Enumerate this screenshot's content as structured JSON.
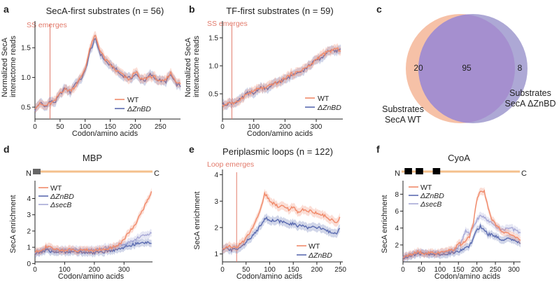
{
  "colors": {
    "wt": "#f08a6a",
    "znbd": "#5b6bb0",
    "secb": "#a7a8d6",
    "vline": "#e27a6b",
    "venn_wt": "#f6c1a7",
    "venn_secA": "#a9a3d3",
    "venn_overlap": "#a58fcf",
    "orf": "#f4c08c",
    "ss": "#666666",
    "tm": "#000000"
  },
  "chart_data": [
    {
      "panel": "a",
      "type": "line",
      "title": "SecA-first substrates (n = 56)",
      "xlabel": "Codon/amino acids",
      "ylabel": "Normalized SecA interactome reads",
      "xlim": [
        0,
        290
      ],
      "ylim": [
        0.3,
        1.95
      ],
      "xticks": [
        0,
        50,
        100,
        150,
        200,
        250
      ],
      "yticks": [
        0.5,
        1.0,
        1.5
      ],
      "ytick_labels": [
        "0.5",
        "1.0",
        "1.5"
      ],
      "vline": {
        "x": 30,
        "label": "SS emerges"
      },
      "legend": [
        "WT",
        "ΔZnBD"
      ],
      "series": [
        {
          "name": "WT",
          "x": [
            0,
            10,
            20,
            30,
            40,
            50,
            60,
            70,
            80,
            90,
            100,
            110,
            120,
            130,
            140,
            150,
            160,
            170,
            180,
            190,
            200,
            210,
            220,
            230,
            240,
            250,
            260,
            270,
            280,
            290
          ],
          "values": [
            0.5,
            0.55,
            0.52,
            0.56,
            0.6,
            0.75,
            0.8,
            0.78,
            0.85,
            0.98,
            1.15,
            1.5,
            1.72,
            1.45,
            1.3,
            1.22,
            1.12,
            1.08,
            1.0,
            0.96,
            1.12,
            0.96,
            0.98,
            1.02,
            1.0,
            0.92,
            0.95,
            1.08,
            0.95,
            0.88
          ]
        },
        {
          "name": "ΔZnBD",
          "x": [
            0,
            10,
            20,
            30,
            40,
            50,
            60,
            70,
            80,
            90,
            100,
            110,
            120,
            130,
            140,
            150,
            160,
            170,
            180,
            190,
            200,
            210,
            220,
            230,
            240,
            250,
            260,
            270,
            280,
            290
          ],
          "values": [
            0.45,
            0.58,
            0.5,
            0.6,
            0.58,
            0.72,
            0.82,
            0.75,
            0.9,
            0.95,
            1.1,
            1.45,
            1.65,
            1.4,
            1.28,
            1.2,
            1.15,
            1.05,
            1.02,
            0.98,
            1.05,
            0.98,
            0.95,
            1.05,
            0.98,
            0.95,
            0.92,
            1.05,
            0.9,
            0.85
          ]
        }
      ]
    },
    {
      "panel": "b",
      "type": "line",
      "title": "TF-first substrates (n = 59)",
      "xlabel": "Codon/amino acids",
      "ylabel": "Normalized SecA interactome reads",
      "xlim": [
        0,
        385
      ],
      "ylim": [
        0.05,
        1.8
      ],
      "xticks": [
        0,
        100,
        200,
        300
      ],
      "yticks": [
        0.5,
        1.0,
        1.5
      ],
      "ytick_labels": [
        "0.5",
        "1.0",
        "1.5"
      ],
      "vline": {
        "x": 30,
        "label": "SS emerges"
      },
      "legend": [
        "WT",
        "ΔZnBD"
      ],
      "series": [
        {
          "name": "WT",
          "x": [
            0,
            20,
            40,
            60,
            80,
            100,
            120,
            140,
            160,
            180,
            200,
            220,
            240,
            260,
            280,
            300,
            320,
            340,
            360,
            380
          ],
          "values": [
            0.28,
            0.35,
            0.32,
            0.42,
            0.5,
            0.55,
            0.6,
            0.6,
            0.68,
            0.7,
            0.78,
            0.85,
            0.88,
            0.95,
            1.0,
            1.12,
            1.2,
            1.25,
            1.3,
            1.28
          ]
        },
        {
          "name": "ΔZnBD",
          "x": [
            0,
            20,
            40,
            60,
            80,
            100,
            120,
            140,
            160,
            180,
            200,
            220,
            240,
            260,
            280,
            300,
            320,
            340,
            360,
            380
          ],
          "values": [
            0.3,
            0.33,
            0.35,
            0.4,
            0.52,
            0.5,
            0.62,
            0.58,
            0.65,
            0.72,
            0.75,
            0.82,
            0.9,
            0.92,
            1.02,
            1.1,
            1.15,
            1.28,
            1.25,
            1.3
          ]
        }
      ]
    },
    {
      "panel": "c",
      "type": "venn",
      "sets": [
        {
          "name": "Substrates SecA WT",
          "label_lines": [
            "Substrates",
            "SecA WT"
          ],
          "only": 20
        },
        {
          "name": "Substrates SecA ΔZnBD",
          "label_lines": [
            "Substrates",
            "SecA ΔZnBD"
          ],
          "only": 8
        }
      ],
      "overlap": 95
    },
    {
      "panel": "d",
      "type": "line",
      "title": "MBP",
      "xlabel": "Codon/amino acids",
      "ylabel": "SecA enrichment",
      "xlim": [
        0,
        396
      ],
      "ylim": [
        0.1,
        5.1
      ],
      "xticks": [
        0,
        100,
        200,
        300
      ],
      "yticks": [
        0,
        1,
        2,
        3,
        4
      ],
      "ytick_labels": [
        "0",
        "1",
        "2",
        "3",
        "4"
      ],
      "schematic": {
        "n_label": "N",
        "c_label": "C",
        "length": 396,
        "signal_sequence": [
          0,
          26
        ]
      },
      "legend": [
        "WT",
        "ΔZnBD",
        "ΔsecB"
      ],
      "series": [
        {
          "name": "WT",
          "x": [
            0,
            20,
            40,
            60,
            80,
            100,
            120,
            140,
            160,
            180,
            200,
            220,
            240,
            260,
            280,
            300,
            320,
            340,
            360,
            380,
            396
          ],
          "values": [
            0.7,
            0.85,
            1.05,
            0.9,
            0.85,
            0.82,
            0.85,
            0.8,
            0.85,
            0.82,
            0.8,
            0.9,
            0.85,
            1.0,
            1.1,
            1.5,
            2.0,
            2.5,
            3.2,
            3.9,
            4.5
          ]
        },
        {
          "name": "ΔZnBD",
          "x": [
            0,
            20,
            40,
            60,
            80,
            100,
            120,
            140,
            160,
            180,
            200,
            220,
            240,
            260,
            280,
            300,
            320,
            340,
            360,
            380,
            396
          ],
          "values": [
            0.6,
            0.7,
            0.85,
            0.7,
            0.72,
            0.7,
            0.75,
            0.7,
            0.72,
            0.7,
            0.65,
            0.7,
            0.75,
            0.8,
            0.9,
            1.0,
            1.1,
            1.2,
            1.25,
            1.3,
            1.3
          ]
        },
        {
          "name": "ΔsecB",
          "x": [
            0,
            20,
            40,
            60,
            80,
            100,
            120,
            140,
            160,
            180,
            200,
            220,
            240,
            260,
            280,
            300,
            320,
            340,
            360,
            380,
            396
          ],
          "values": [
            0.65,
            0.8,
            0.95,
            0.85,
            0.82,
            0.85,
            0.8,
            0.85,
            0.8,
            0.85,
            0.85,
            0.9,
            1.0,
            1.0,
            1.1,
            1.2,
            1.3,
            1.5,
            1.7,
            1.8,
            1.85
          ]
        }
      ]
    },
    {
      "panel": "e",
      "type": "line",
      "title": "Periplasmic loops (n = 122)",
      "xlabel": "Codon/amino acids",
      "ylabel": "SecA enrichment",
      "xlim": [
        0,
        255
      ],
      "ylim": [
        0.7,
        4.2
      ],
      "xticks": [
        0,
        50,
        100,
        150,
        200,
        250
      ],
      "yticks": [
        1,
        2,
        3,
        4
      ],
      "ytick_labels": [
        "1",
        "2",
        "3",
        "4"
      ],
      "vline": {
        "x": 30,
        "label": "Loop emerges"
      },
      "legend": [
        "WT",
        "ΔZnBD"
      ],
      "series": [
        {
          "name": "WT",
          "x": [
            0,
            10,
            20,
            30,
            40,
            50,
            60,
            70,
            80,
            90,
            100,
            110,
            120,
            130,
            140,
            150,
            160,
            170,
            180,
            190,
            200,
            210,
            220,
            230,
            240,
            250
          ],
          "values": [
            1.2,
            1.3,
            1.25,
            1.25,
            1.4,
            1.6,
            1.9,
            2.2,
            2.7,
            3.3,
            3.0,
            2.9,
            2.8,
            2.85,
            2.7,
            2.75,
            2.6,
            2.7,
            2.65,
            2.6,
            2.55,
            2.5,
            2.4,
            2.3,
            2.2,
            2.4
          ]
        },
        {
          "name": "ΔZnBD",
          "x": [
            0,
            10,
            20,
            30,
            40,
            50,
            60,
            70,
            80,
            90,
            100,
            110,
            120,
            130,
            140,
            150,
            160,
            170,
            180,
            190,
            200,
            210,
            220,
            230,
            240,
            250
          ],
          "values": [
            1.15,
            1.2,
            1.15,
            1.2,
            1.3,
            1.45,
            1.6,
            1.8,
            2.1,
            2.35,
            2.3,
            2.25,
            2.25,
            2.2,
            2.1,
            2.15,
            2.05,
            2.1,
            2.0,
            2.05,
            2.0,
            1.95,
            1.9,
            1.8,
            1.75,
            2.05
          ]
        }
      ]
    },
    {
      "panel": "f",
      "type": "line",
      "title": "CyoA",
      "xlabel": "Codon/amino acids",
      "ylabel": "SecA enrichment",
      "xlim": [
        0,
        318
      ],
      "ylim": [
        0,
        9.6
      ],
      "xticks": [
        0,
        50,
        100,
        150,
        200,
        250,
        300
      ],
      "yticks": [
        2,
        4,
        6,
        8
      ],
      "ytick_labels": [
        "2",
        "4",
        "6",
        "8"
      ],
      "schematic": {
        "n_label": "N",
        "c_label": "C",
        "length": 318,
        "transmembrane_segments": [
          [
            8,
            28
          ],
          [
            38,
            58
          ],
          [
            84,
            104
          ]
        ]
      },
      "legend": [
        "WT",
        "ΔZnBD",
        "ΔsecB"
      ],
      "series": [
        {
          "name": "WT",
          "x": [
            0,
            20,
            40,
            60,
            80,
            100,
            120,
            140,
            150,
            160,
            170,
            180,
            190,
            200,
            210,
            220,
            230,
            240,
            250,
            260,
            270,
            280,
            290,
            300,
            310,
            318
          ],
          "values": [
            0.6,
            0.8,
            1.2,
            1.0,
            1.1,
            1.0,
            1.3,
            1.5,
            2.2,
            2.0,
            2.5,
            3.0,
            4.5,
            7.5,
            8.5,
            8.3,
            6.5,
            5.0,
            4.5,
            4.0,
            3.5,
            3.5,
            3.2,
            3.0,
            2.8,
            2.6
          ]
        },
        {
          "name": "ΔZnBD",
          "x": [
            0,
            20,
            40,
            60,
            80,
            100,
            120,
            140,
            150,
            160,
            170,
            180,
            190,
            200,
            210,
            220,
            230,
            240,
            250,
            260,
            270,
            280,
            290,
            300,
            310,
            318
          ],
          "values": [
            0.5,
            0.7,
            1.0,
            0.9,
            0.95,
            0.9,
            1.0,
            1.1,
            1.3,
            1.4,
            1.6,
            1.8,
            2.8,
            3.8,
            4.2,
            3.8,
            3.2,
            3.3,
            3.0,
            2.8,
            2.6,
            2.8,
            2.6,
            2.5,
            2.4,
            2.3
          ]
        },
        {
          "name": "ΔsecB",
          "x": [
            0,
            20,
            40,
            60,
            80,
            100,
            120,
            140,
            150,
            160,
            170,
            180,
            190,
            200,
            210,
            220,
            230,
            240,
            250,
            260,
            270,
            280,
            290,
            300,
            310,
            318
          ],
          "values": [
            0.6,
            0.8,
            1.1,
            1.0,
            1.05,
            1.0,
            1.2,
            1.4,
            1.8,
            2.5,
            3.8,
            3.2,
            4.2,
            5.0,
            5.5,
            5.2,
            4.8,
            4.6,
            4.2,
            4.0,
            3.8,
            3.9,
            4.0,
            3.8,
            3.6,
            3.4
          ]
        }
      ]
    }
  ]
}
